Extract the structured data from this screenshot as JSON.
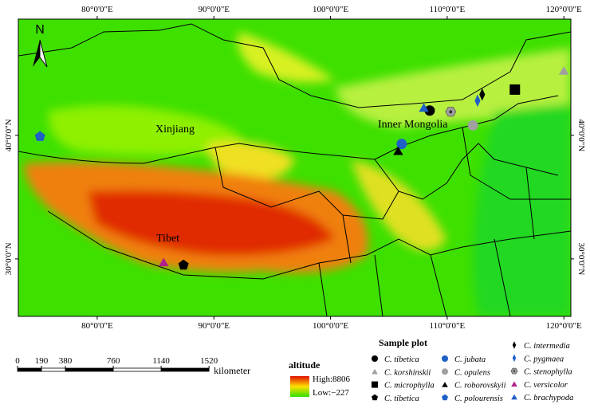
{
  "map": {
    "north": "N",
    "lonlim": [
      73.24,
      120.6
    ],
    "latlim": [
      25.35,
      49.4
    ],
    "lonticks": [
      {
        "value": 80,
        "label": "80°0'0\"E"
      },
      {
        "value": 90,
        "label": "90°0'0\"E"
      },
      {
        "value": 100,
        "label": "100°0'0\"E"
      },
      {
        "value": 110,
        "label": "110°0'0\"E"
      },
      {
        "value": 120,
        "label": "120°0'0\"E"
      }
    ],
    "latticks": [
      {
        "value": 40,
        "label": "40°0'0\"N"
      },
      {
        "value": 30,
        "label": "30°0'0\"N"
      }
    ],
    "regions": [
      "Xinjiang",
      "Inner Mongolia",
      "Tibet"
    ]
  },
  "legend": {
    "title": "Sample plot",
    "items": [
      {
        "name": "C. tibetica",
        "marker": "circle",
        "color": "#000000",
        "lon": 108.5,
        "lat": 42.0
      },
      {
        "name": "C. korshinskii",
        "marker": "triangle",
        "color": "#a0a0a0",
        "lon": 120.0,
        "lat": 45.2
      },
      {
        "name": "C. microphylla",
        "marker": "square",
        "color": "#000000",
        "lon": 115.8,
        "lat": 43.7
      },
      {
        "name": "C. tibetica",
        "marker": "pentagon",
        "color": "#000000",
        "lon": 87.4,
        "lat": 29.5
      },
      {
        "name": "C. jubata",
        "marker": "circle",
        "color": "#1f5fc8",
        "lon": 106.1,
        "lat": 39.3
      },
      {
        "name": "C. opulens",
        "marker": "circle",
        "color": "#a0a0a0",
        "lon": 112.2,
        "lat": 40.8
      },
      {
        "name": "C. roborovskyii",
        "marker": "triangle",
        "color": "#000000",
        "lon": 105.8,
        "lat": 38.7
      },
      {
        "name": "C. polourensis",
        "marker": "pentagon",
        "color": "#1f5fc8",
        "lon": 75.1,
        "lat": 39.9
      },
      {
        "name": "C. intermedia",
        "marker": "diamond",
        "color": "#000000",
        "lon": 113.0,
        "lat": 43.3
      },
      {
        "name": "C. pygmaea",
        "marker": "diamond",
        "color": "#1f5fc8",
        "lon": 112.6,
        "lat": 42.8
      },
      {
        "name": "C. stenophylla",
        "marker": "hexagon",
        "color": "#a0a0a0",
        "lon": 110.3,
        "lat": 41.9
      },
      {
        "name": "C. versicolor",
        "marker": "triangle",
        "color": "#b0208c",
        "lon": 85.7,
        "lat": 29.7
      },
      {
        "name": "C. brachypoda",
        "marker": "triangle",
        "color": "#1f5fc8",
        "lon": 108.0,
        "lat": 42.2
      }
    ]
  },
  "altitude": {
    "title": "altitude",
    "high": "High:8806",
    "low": "Low:−227"
  },
  "scale": {
    "ticks": [
      0,
      190,
      380,
      760,
      1140,
      1520
    ],
    "unit": "kilometer"
  }
}
